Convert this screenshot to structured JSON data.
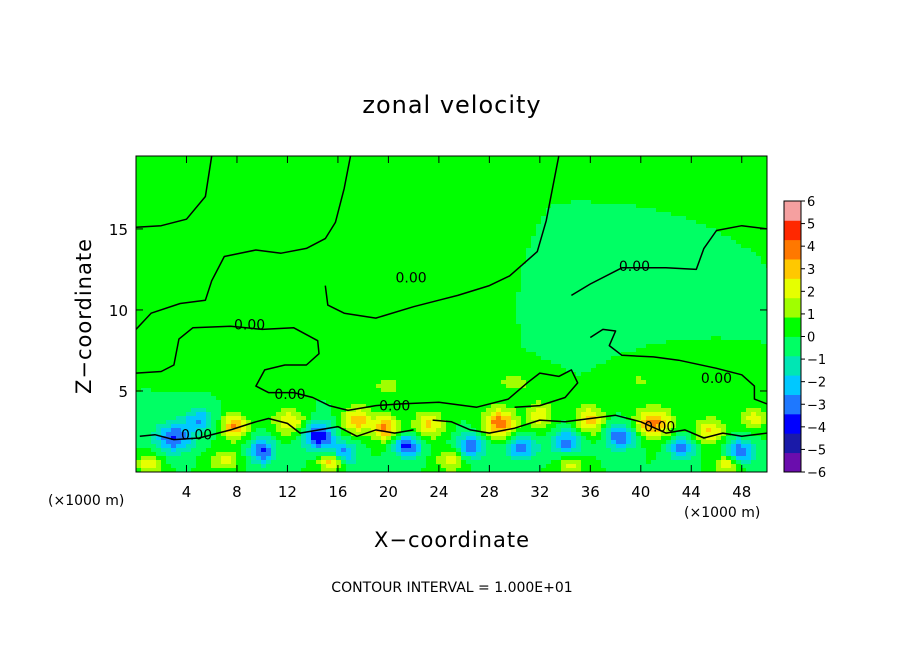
{
  "chart_data": {
    "type": "heatmap",
    "title": "zonal velocity",
    "xlabel": "X−coordinate",
    "ylabel": "Z−coordinate",
    "x_unit_left": "(×1000 m)",
    "x_unit_right": "(×1000 m)",
    "footer": "CONTOUR INTERVAL = 1.000E+01",
    "xlim": [
      0,
      50
    ],
    "ylim": [
      0,
      19.5
    ],
    "x_ticks": [
      "4",
      "8",
      "12",
      "16",
      "20",
      "24",
      "28",
      "32",
      "36",
      "40",
      "44",
      "48"
    ],
    "x_tick_values": [
      4,
      8,
      12,
      16,
      20,
      24,
      28,
      32,
      36,
      40,
      44,
      48
    ],
    "y_ticks": [
      "5",
      "10",
      "15"
    ],
    "y_tick_values": [
      5,
      10,
      15
    ],
    "colorbar": {
      "range": [
        -6,
        6
      ],
      "ticks": [
        "6",
        "5",
        "4",
        "3",
        "2",
        "1",
        "0",
        "−1",
        "−2",
        "−3",
        "−4",
        "−5",
        "−6"
      ],
      "colors": [
        "#6a0dad",
        "#1a1aa8",
        "#0000ff",
        "#1e78ff",
        "#00c8ff",
        "#00e6b4",
        "#00ff64",
        "#00ff00",
        "#a0ff00",
        "#e6ff00",
        "#ffc800",
        "#ff7800",
        "#ff2800",
        "#f5a0a0"
      ]
    },
    "contour_level": "0.00",
    "contour_labels": [
      "0.00",
      "0.00",
      "0.00",
      "0.00",
      "0.00",
      "0.00",
      "0.00",
      "0.00"
    ],
    "contours": [
      [
        [
          0,
          15.1
        ],
        [
          2,
          15.2
        ],
        [
          4,
          15.6
        ],
        [
          5.5,
          17
        ],
        [
          6,
          19.5
        ]
      ],
      [
        [
          0,
          8.8
        ],
        [
          1.2,
          9.8
        ],
        [
          3.5,
          10.4
        ],
        [
          5.5,
          10.6
        ],
        [
          6,
          11.8
        ],
        [
          7,
          13.3
        ],
        [
          9.5,
          13.7
        ],
        [
          11.5,
          13.5
        ],
        [
          13.5,
          13.8
        ],
        [
          15,
          14.4
        ],
        [
          15.8,
          15.4
        ],
        [
          16.5,
          17.5
        ],
        [
          17,
          19.5
        ]
      ],
      [
        [
          0,
          6.1
        ],
        [
          2,
          6.2
        ],
        [
          3,
          6.6
        ],
        [
          3.4,
          8.2
        ],
        [
          4.5,
          8.9
        ],
        [
          7.5,
          9
        ],
        [
          10,
          8.8
        ],
        [
          12.5,
          8.9
        ],
        [
          14.4,
          8.1
        ],
        [
          14.5,
          7.3
        ],
        [
          13.5,
          6.6
        ],
        [
          11.8,
          6.6
        ],
        [
          10.2,
          6.3
        ],
        [
          9.5,
          5.3
        ],
        [
          10.5,
          4.9
        ],
        [
          12.5,
          4.9
        ],
        [
          14,
          4.6
        ],
        [
          15.3,
          4.1
        ],
        [
          16.8,
          3.8
        ],
        [
          19,
          4.1
        ],
        [
          21,
          4.2
        ],
        [
          24,
          4.3
        ],
        [
          27,
          4
        ],
        [
          29.5,
          4.5
        ],
        [
          31,
          5.5
        ],
        [
          32,
          6.1
        ],
        [
          33.5,
          5.9
        ],
        [
          34.5,
          6.3
        ],
        [
          35,
          5.5
        ],
        [
          34,
          4.6
        ],
        [
          32,
          4.1
        ],
        [
          30,
          4
        ]
      ],
      [
        [
          15,
          11.5
        ],
        [
          15.2,
          10.3
        ],
        [
          16.5,
          9.8
        ],
        [
          19,
          9.5
        ],
        [
          22,
          10.2
        ],
        [
          24,
          10.6
        ],
        [
          25.5,
          10.9
        ],
        [
          28,
          11.5
        ],
        [
          29.6,
          12.1
        ],
        [
          31.8,
          13.6
        ],
        [
          32.5,
          15.5
        ],
        [
          33,
          17.5
        ],
        [
          33.5,
          19.5
        ]
      ],
      [
        [
          34.5,
          10.9
        ],
        [
          36,
          11.6
        ],
        [
          38.5,
          12.6
        ],
        [
          42,
          12.6
        ],
        [
          44.4,
          12.5
        ],
        [
          45,
          13.8
        ],
        [
          46,
          14.9
        ],
        [
          48,
          15.2
        ],
        [
          50,
          15
        ]
      ],
      [
        [
          36,
          8.3
        ],
        [
          37,
          8.8
        ],
        [
          38,
          8.7
        ],
        [
          37.5,
          7.8
        ],
        [
          38.5,
          7.2
        ],
        [
          41,
          7.1
        ],
        [
          43,
          6.9
        ],
        [
          46,
          6.4
        ],
        [
          48,
          6
        ],
        [
          49,
          5.3
        ],
        [
          49,
          4.5
        ],
        [
          50,
          4.2
        ]
      ],
      [
        [
          0.3,
          2.2
        ],
        [
          1.5,
          2.3
        ],
        [
          3,
          2
        ],
        [
          5,
          2.1
        ],
        [
          7.5,
          2.6
        ],
        [
          9.5,
          3.1
        ],
        [
          10.5,
          3.3
        ],
        [
          12,
          3
        ],
        [
          13,
          2.4
        ],
        [
          14.5,
          2.6
        ],
        [
          16,
          2.8
        ],
        [
          17.5,
          2.2
        ],
        [
          19,
          2.6
        ],
        [
          20.5,
          2.4
        ],
        [
          22,
          2.6
        ]
      ],
      [
        [
          23.5,
          3.2
        ],
        [
          25,
          3.1
        ],
        [
          26.5,
          2.6
        ],
        [
          28,
          2.4
        ],
        [
          30,
          2.7
        ],
        [
          32,
          3.2
        ],
        [
          34,
          3.1
        ],
        [
          36,
          3.3
        ],
        [
          38,
          3.5
        ],
        [
          40,
          3.1
        ],
        [
          42,
          2.4
        ],
        [
          43.5,
          2.6
        ],
        [
          45,
          2.1
        ],
        [
          46.5,
          2.4
        ],
        [
          48,
          2.2
        ],
        [
          50,
          2.4
        ]
      ]
    ],
    "label_positions": [
      [
        21.8,
        12
      ],
      [
        9,
        9.1
      ],
      [
        39.5,
        12.7
      ],
      [
        46,
        5.8
      ],
      [
        12.2,
        4.8
      ],
      [
        20.5,
        4.1
      ],
      [
        41.5,
        2.8
      ],
      [
        4.8,
        2.3
      ]
    ],
    "field_blobs": [
      [
        3,
        2.1,
        1.5,
        0.9,
        -3.5
      ],
      [
        5,
        3.2,
        1.2,
        0.7,
        -2.5
      ],
      [
        7.8,
        2.8,
        1.0,
        0.8,
        3.5
      ],
      [
        10,
        1.3,
        1.0,
        0.8,
        -3.6
      ],
      [
        12.2,
        3.1,
        1.3,
        0.8,
        2.6
      ],
      [
        14.5,
        2.2,
        1.2,
        0.9,
        -4.2
      ],
      [
        16.5,
        1.1,
        1.0,
        0.7,
        -3.0
      ],
      [
        17.5,
        3.2,
        1.2,
        0.8,
        3.2
      ],
      [
        19.8,
        2.7,
        1.0,
        0.8,
        3.6
      ],
      [
        21.5,
        1.6,
        1.1,
        0.7,
        -3.8
      ],
      [
        23.2,
        2.9,
        1.2,
        0.8,
        2.8
      ],
      [
        26.5,
        1.6,
        1.1,
        0.8,
        -3.2
      ],
      [
        28.8,
        3.0,
        1.3,
        0.9,
        4.0
      ],
      [
        30.5,
        1.5,
        1.2,
        0.7,
        -3.4
      ],
      [
        32,
        3.5,
        1.0,
        0.8,
        2.3
      ],
      [
        34.2,
        1.8,
        1.2,
        0.8,
        -3.0
      ],
      [
        36,
        3.2,
        1.1,
        0.9,
        2.9
      ],
      [
        38.4,
        2.2,
        1.2,
        0.8,
        -3.5
      ],
      [
        41,
        3.0,
        1.5,
        0.9,
        3.8
      ],
      [
        43.2,
        1.5,
        1.0,
        0.7,
        -3.2
      ],
      [
        45.5,
        2.5,
        1.2,
        0.8,
        2.7
      ],
      [
        47.8,
        1.2,
        1.1,
        0.8,
        -3.6
      ],
      [
        49,
        3.3,
        1.0,
        0.7,
        2.2
      ],
      [
        1,
        0.5,
        1.0,
        0.6,
        2.4
      ],
      [
        7,
        0.7,
        1.2,
        0.6,
        2.0
      ],
      [
        15.5,
        0.6,
        1.0,
        0.5,
        3.4
      ],
      [
        25,
        0.7,
        1.1,
        0.6,
        2.4
      ],
      [
        34.5,
        0.5,
        1.0,
        0.6,
        2.1
      ],
      [
        47,
        0.5,
        1.0,
        0.6,
        3.0
      ],
      [
        20,
        5.3,
        2.0,
        0.9,
        1.0
      ],
      [
        30,
        5.5,
        2.4,
        1.0,
        1.0
      ],
      [
        40,
        5.6,
        2.2,
        1.0,
        0.9
      ],
      [
        10,
        6.5,
        3.0,
        1.2,
        0.4
      ],
      [
        25,
        8,
        3.5,
        1.6,
        0.35
      ],
      [
        35,
        8.5,
        3.0,
        1.4,
        -0.3
      ],
      [
        15,
        12,
        3.0,
        2.0,
        0.3
      ]
    ]
  }
}
